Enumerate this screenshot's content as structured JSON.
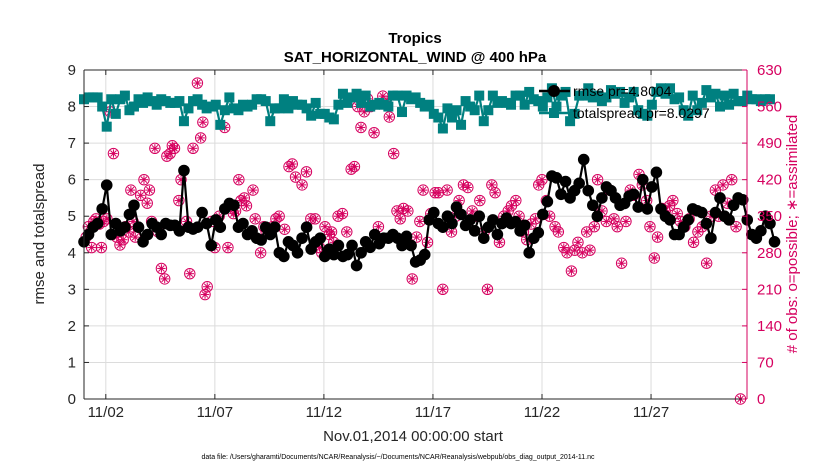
{
  "chart_data": {
    "type": "line",
    "title": "Tropics",
    "subtitle": "SAT_HORIZONTAL_WIND @ 400 hPa",
    "xlabel": "Nov.01,2014 00:00:00 start",
    "ylabel": "rmse and totalspread",
    "ylabel_right": "# of obs: o=possible; ∗=assimilated",
    "footer": "data file: /Users/gharamti/Documents/NCAR/Reanalysis/~/Documents/NCAR/Reanalysis/webpub/obs_diag_output_2014-11.nc",
    "xlim": [
      0.5,
      30.9
    ],
    "ylim": [
      0,
      9
    ],
    "ylim_right": [
      0,
      630
    ],
    "x_ticks": [
      1.5,
      6.5,
      11.5,
      16.5,
      21.5,
      26.5
    ],
    "x_tick_labels": [
      "11/02",
      "11/07",
      "11/12",
      "11/17",
      "11/22",
      "11/27"
    ],
    "y_ticks": [
      "0",
      "1",
      "2",
      "3",
      "4",
      "5",
      "6",
      "7",
      "8",
      "9"
    ],
    "y_ticks_right": [
      "0",
      "70",
      "140",
      "210",
      "280",
      "350",
      "420",
      "490",
      "560",
      "630"
    ],
    "legend": [
      "rmse pr=4.8004",
      "totalspread pr=8.0297"
    ],
    "colors": {
      "rmse": "#000000",
      "totalspread": "#008080",
      "obs": "#d6005f",
      "axes": "#262626"
    },
    "series": [
      {
        "name": "rmse",
        "values": [
          4.3,
          4.5,
          4.7,
          4.8,
          5.2,
          5.85,
          4.5,
          4.8,
          4.6,
          4.7,
          5.05,
          5.3,
          4.7,
          4.3,
          4.5,
          4.8,
          4.7,
          4.5,
          4.8,
          4.75,
          4.75,
          4.6,
          6.25,
          4.7,
          4.65,
          4.7,
          5.1,
          4.8,
          4.2,
          4.9,
          4.7,
          5.2,
          5.35,
          5.3,
          4.7,
          4.8,
          4.5,
          4.6,
          4.4,
          4.35,
          4.7,
          4.5,
          4.7,
          4.0,
          3.9,
          4.3,
          4.2,
          4.0,
          4.4,
          4.7,
          4.1,
          4.3,
          4.4,
          3.9,
          4.1,
          3.95,
          4.2,
          3.9,
          3.95,
          4.2,
          3.65,
          4.0,
          4.3,
          4.15,
          4.5,
          4.25,
          4.4,
          4.4,
          4.5,
          4.4,
          4.2,
          4.45,
          4.2,
          3.75,
          3.8,
          3.95,
          4.9,
          5.1,
          4.8,
          4.7,
          5.0,
          4.8,
          5.25,
          5.05,
          4.75,
          4.9,
          4.6,
          5.0,
          4.4,
          4.7,
          4.9,
          4.5,
          4.8,
          4.95,
          4.8,
          4.85,
          4.6,
          4.75,
          4.0,
          4.4,
          4.55,
          5.05,
          5.4,
          6.1,
          6.05,
          5.6,
          5.95,
          5.5,
          5.7,
          5.9,
          6.55,
          5.7,
          5.3,
          5.0,
          5.5,
          5.8,
          5.7,
          5.5,
          5.3,
          5.35,
          5.55,
          5.6,
          5.25,
          6.0,
          5.2,
          5.8,
          6.2,
          5.2,
          5.0,
          4.9,
          4.5,
          4.5,
          4.7,
          4.9,
          5.2,
          5.15,
          5.1,
          4.8,
          4.4,
          5.1,
          5.5,
          5.0,
          4.9,
          5.3,
          5.5,
          5.45,
          4.9,
          4.5,
          4.4,
          4.6,
          5.0,
          4.8,
          4.3
        ],
        "start": 0.5,
        "step": 0.2083
      },
      {
        "name": "totalspread",
        "values": [
          8.2,
          8.25,
          8.25,
          8.25,
          8.0,
          7.45,
          8.2,
          7.8,
          8.2,
          8.3,
          7.9,
          8.0,
          8.2,
          8.1,
          8.25,
          8.15,
          8.05,
          8.2,
          8.15,
          8.1,
          8.1,
          8.15,
          7.6,
          7.95,
          8.15,
          8.2,
          8.05,
          7.95,
          8.0,
          8.05,
          7.5,
          7.9,
          8.25,
          7.95,
          7.9,
          8.05,
          8.0,
          8.05,
          8.2,
          8.2,
          8.15,
          7.6,
          7.95,
          7.95,
          8.2,
          7.95,
          8.15,
          8.05,
          8.05,
          7.95,
          7.75,
          8.1,
          7.8,
          7.8,
          7.7,
          7.65,
          8.05,
          8.35,
          8.1,
          8.25,
          8.35,
          8.1,
          8.3,
          8.0,
          8.05,
          8.1,
          8.05,
          8.0,
          8.3,
          8.3,
          7.85,
          8.3,
          8.2,
          8.25,
          8.1,
          8.0,
          8.05,
          7.8,
          7.7,
          7.4,
          7.95,
          7.7,
          7.9,
          7.5,
          8.15,
          8.0,
          7.9,
          8.3,
          7.6,
          7.9,
          8.3,
          8.1,
          8.15,
          8.1,
          8.05,
          8.3,
          8.3,
          8.05,
          8.4,
          8.2,
          8.15,
          8.0,
          8.25,
          8.5,
          8.0,
          8.3,
          8.4,
          7.6,
          7.8,
          8.3,
          8.3,
          8.5,
          8.25,
          8.3,
          8.15,
          8.25,
          8.45,
          8.35,
          8.4,
          8.1,
          8.25,
          8.4,
          7.9,
          7.8,
          7.75,
          8.05,
          8.4,
          8.5,
          8.35,
          8.5,
          8.2,
          8.25,
          7.9,
          7.75,
          8.3,
          7.9,
          8.1,
          8.45,
          8.25,
          8.35,
          8.0,
          8.3,
          8.05,
          8.35,
          8.15,
          8.15,
          8.3,
          8.2,
          8.2,
          8.15,
          8.2,
          8.2
        ],
        "start": 0.5,
        "step": 0.2083
      },
      {
        "name": "possible",
        "points": [
          [
            0.6,
            310
          ],
          [
            0.7,
            330
          ],
          [
            0.85,
            290
          ],
          [
            0.95,
            340
          ],
          [
            1.05,
            345
          ],
          [
            1.2,
            335
          ],
          [
            1.3,
            290
          ],
          [
            1.4,
            340
          ],
          [
            1.55,
            345
          ],
          [
            1.7,
            550
          ],
          [
            1.85,
            470
          ],
          [
            2.0,
            310
          ],
          [
            2.15,
            295
          ],
          [
            2.3,
            305
          ],
          [
            2.4,
            330
          ],
          [
            2.55,
            320
          ],
          [
            2.65,
            400
          ],
          [
            2.75,
            340
          ],
          [
            2.85,
            310
          ],
          [
            3.1,
            390
          ],
          [
            3.25,
            420
          ],
          [
            3.4,
            375
          ],
          [
            3.5,
            400
          ],
          [
            3.6,
            340
          ],
          [
            3.75,
            480
          ],
          [
            3.9,
            320
          ],
          [
            4.05,
            250
          ],
          [
            4.2,
            230
          ],
          [
            4.3,
            465
          ],
          [
            4.45,
            470
          ],
          [
            4.55,
            485
          ],
          [
            4.65,
            480
          ],
          [
            4.85,
            380
          ],
          [
            4.95,
            420
          ],
          [
            5.2,
            340
          ],
          [
            5.35,
            240
          ],
          [
            5.5,
            480
          ],
          [
            5.7,
            605
          ],
          [
            5.85,
            500
          ],
          [
            5.95,
            530
          ],
          [
            6.05,
            200
          ],
          [
            6.15,
            215
          ],
          [
            6.35,
            340
          ],
          [
            6.5,
            290
          ],
          [
            6.7,
            350
          ],
          [
            6.95,
            520
          ],
          [
            7.1,
            290
          ],
          [
            7.35,
            355
          ],
          [
            7.45,
            360
          ],
          [
            7.6,
            420
          ],
          [
            7.7,
            380
          ],
          [
            7.85,
            385
          ],
          [
            7.95,
            370
          ],
          [
            8.25,
            400
          ],
          [
            8.35,
            345
          ],
          [
            8.6,
            280
          ],
          [
            8.75,
            330
          ],
          [
            8.85,
            320
          ],
          [
            9.05,
            320
          ],
          [
            9.15,
            330
          ],
          [
            9.3,
            345
          ],
          [
            9.45,
            350
          ],
          [
            9.7,
            325
          ],
          [
            9.9,
            445
          ],
          [
            10.05,
            450
          ],
          [
            10.2,
            425
          ],
          [
            10.5,
            410
          ],
          [
            10.7,
            435
          ],
          [
            10.9,
            345
          ],
          [
            11.1,
            345
          ],
          [
            11.3,
            290
          ],
          [
            11.4,
            280
          ],
          [
            11.55,
            330
          ],
          [
            11.75,
            315
          ],
          [
            11.85,
            320
          ],
          [
            11.95,
            300
          ],
          [
            12.15,
            350
          ],
          [
            12.35,
            355
          ],
          [
            12.55,
            320
          ],
          [
            12.75,
            440
          ],
          [
            12.9,
            445
          ],
          [
            13.05,
            560
          ],
          [
            13.2,
            520
          ],
          [
            13.35,
            550
          ],
          [
            13.5,
            575
          ],
          [
            13.65,
            560
          ],
          [
            13.8,
            510
          ],
          [
            14.0,
            330
          ],
          [
            14.2,
            580
          ],
          [
            14.35,
            570
          ],
          [
            14.5,
            540
          ],
          [
            14.7,
            470
          ],
          [
            14.85,
            360
          ],
          [
            15.0,
            345
          ],
          [
            15.15,
            365
          ],
          [
            15.35,
            360
          ],
          [
            15.55,
            230
          ],
          [
            15.75,
            310
          ],
          [
            15.9,
            340
          ],
          [
            16.05,
            400
          ],
          [
            16.25,
            300
          ],
          [
            16.4,
            355
          ],
          [
            16.6,
            395
          ],
          [
            16.75,
            395
          ],
          [
            16.95,
            210
          ],
          [
            17.15,
            400
          ],
          [
            17.35,
            320
          ],
          [
            17.55,
            350
          ],
          [
            17.7,
            380
          ],
          [
            17.9,
            410
          ],
          [
            18.1,
            405
          ],
          [
            18.3,
            360
          ],
          [
            18.45,
            350
          ],
          [
            18.65,
            380
          ],
          [
            18.85,
            320
          ],
          [
            19.0,
            210
          ],
          [
            19.2,
            410
          ],
          [
            19.35,
            395
          ],
          [
            19.55,
            300
          ],
          [
            19.75,
            350
          ],
          [
            19.95,
            360
          ],
          [
            20.1,
            370
          ],
          [
            20.3,
            380
          ],
          [
            20.45,
            350
          ],
          [
            20.65,
            320
          ],
          [
            20.8,
            305
          ],
          [
            21.0,
            335
          ],
          [
            21.2,
            345
          ],
          [
            21.35,
            410
          ],
          [
            21.5,
            420
          ],
          [
            21.7,
            380
          ],
          [
            21.85,
            350
          ],
          [
            22.1,
            330
          ],
          [
            22.25,
            320
          ],
          [
            22.5,
            290
          ],
          [
            22.65,
            280
          ],
          [
            22.85,
            245
          ],
          [
            23.0,
            285
          ],
          [
            23.15,
            300
          ],
          [
            23.35,
            280
          ],
          [
            23.55,
            320
          ],
          [
            23.7,
            285
          ],
          [
            23.9,
            330
          ],
          [
            24.05,
            420
          ],
          [
            24.25,
            360
          ],
          [
            24.45,
            340
          ],
          [
            24.6,
            400
          ],
          [
            24.8,
            345
          ],
          [
            24.95,
            330
          ],
          [
            25.15,
            260
          ],
          [
            25.35,
            340
          ],
          [
            25.55,
            400
          ],
          [
            25.7,
            390
          ],
          [
            25.95,
            430
          ],
          [
            26.1,
            410
          ],
          [
            26.3,
            380
          ],
          [
            26.45,
            330
          ],
          [
            26.65,
            270
          ],
          [
            26.8,
            310
          ],
          [
            27.0,
            365
          ],
          [
            27.15,
            360
          ],
          [
            27.35,
            370
          ],
          [
            27.5,
            380
          ],
          [
            27.7,
            355
          ],
          [
            27.85,
            340
          ],
          [
            28.05,
            330
          ],
          [
            28.25,
            345
          ],
          [
            28.45,
            300
          ],
          [
            28.65,
            320
          ],
          [
            28.85,
            330
          ],
          [
            29.05,
            260
          ],
          [
            29.25,
            350
          ],
          [
            29.45,
            400
          ],
          [
            29.6,
            350
          ],
          [
            29.8,
            410
          ],
          [
            30.0,
            375
          ],
          [
            30.2,
            420
          ],
          [
            30.4,
            330
          ],
          [
            30.6,
            0
          ]
        ]
      }
    ]
  }
}
